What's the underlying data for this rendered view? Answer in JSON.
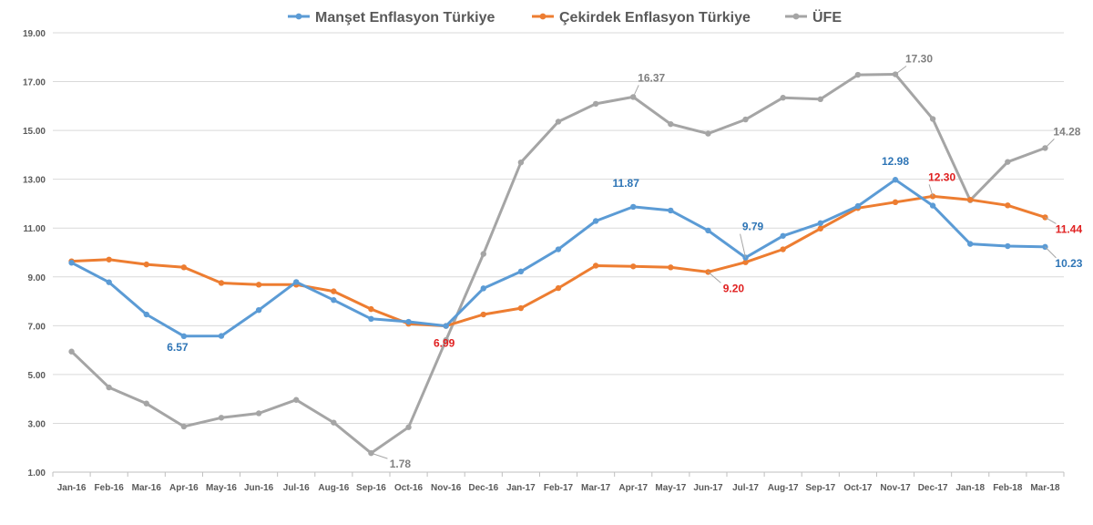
{
  "chart_data": {
    "type": "line",
    "title": "",
    "xlabel": "",
    "ylabel": "",
    "ylim": [
      1,
      19
    ],
    "yticks": [
      "1.00",
      "3.00",
      "5.00",
      "7.00",
      "9.00",
      "11.00",
      "13.00",
      "15.00",
      "17.00",
      "19.00"
    ],
    "grid": "horizontal",
    "legend_position": "top",
    "categories": [
      "Jan-16",
      "Feb-16",
      "Mar-16",
      "Apr-16",
      "May-16",
      "Jun-16",
      "Jul-16",
      "Aug-16",
      "Sep-16",
      "Oct-16",
      "Nov-16",
      "Dec-16",
      "Jan-17",
      "Feb-17",
      "Mar-17",
      "Apr-17",
      "May-17",
      "Jun-17",
      "Jul-17",
      "Aug-17",
      "Sep-17",
      "Oct-17",
      "Nov-17",
      "Dec-17",
      "Jan-18",
      "Feb-18",
      "Mar-18"
    ],
    "series": [
      {
        "name": "Manşet Enflasyon Türkiye",
        "color": "#5B9BD5",
        "label_color": "#2E75B6",
        "values": [
          9.58,
          8.78,
          7.46,
          6.57,
          6.58,
          7.64,
          8.79,
          8.05,
          7.28,
          7.16,
          6.99,
          8.53,
          9.22,
          10.13,
          11.29,
          11.87,
          11.72,
          10.9,
          9.79,
          10.68,
          11.2,
          11.9,
          12.98,
          11.92,
          10.35,
          10.26,
          10.23
        ],
        "labels": [
          {
            "index": 3,
            "text": "6.57"
          },
          {
            "index": 15,
            "text": "11.87"
          },
          {
            "index": 18,
            "text": "9.79"
          },
          {
            "index": 22,
            "text": "12.98"
          },
          {
            "index": 26,
            "text": "10.23"
          }
        ]
      },
      {
        "name": "Çekirdek Enflasyon Türkiye",
        "color": "#ED7D31",
        "label_color": "#E02020",
        "values": [
          9.64,
          9.71,
          9.51,
          9.39,
          8.75,
          8.68,
          8.68,
          8.41,
          7.68,
          7.08,
          6.99,
          7.46,
          7.72,
          8.54,
          9.46,
          9.43,
          9.39,
          9.2,
          9.6,
          10.13,
          10.98,
          11.82,
          12.06,
          12.3,
          12.16,
          11.93,
          11.44
        ],
        "labels": [
          {
            "index": 10,
            "text": "6.99"
          },
          {
            "index": 17,
            "text": "9.20"
          },
          {
            "index": 23,
            "text": "12.30"
          },
          {
            "index": 26,
            "text": "11.44"
          }
        ]
      },
      {
        "name": "ÜFE",
        "color": "#A5A5A5",
        "label_color": "#808080",
        "values": [
          5.94,
          4.47,
          3.81,
          2.87,
          3.23,
          3.41,
          3.96,
          3.03,
          1.78,
          2.84,
          6.41,
          9.94,
          13.69,
          15.36,
          16.09,
          16.37,
          15.26,
          14.87,
          15.45,
          16.34,
          16.28,
          17.28,
          17.3,
          15.47,
          12.14,
          13.71,
          14.28
        ],
        "labels": [
          {
            "index": 8,
            "text": "1.78"
          },
          {
            "index": 15,
            "text": "16.37"
          },
          {
            "index": 22,
            "text": "17.30"
          },
          {
            "index": 26,
            "text": "14.28"
          }
        ]
      }
    ]
  }
}
